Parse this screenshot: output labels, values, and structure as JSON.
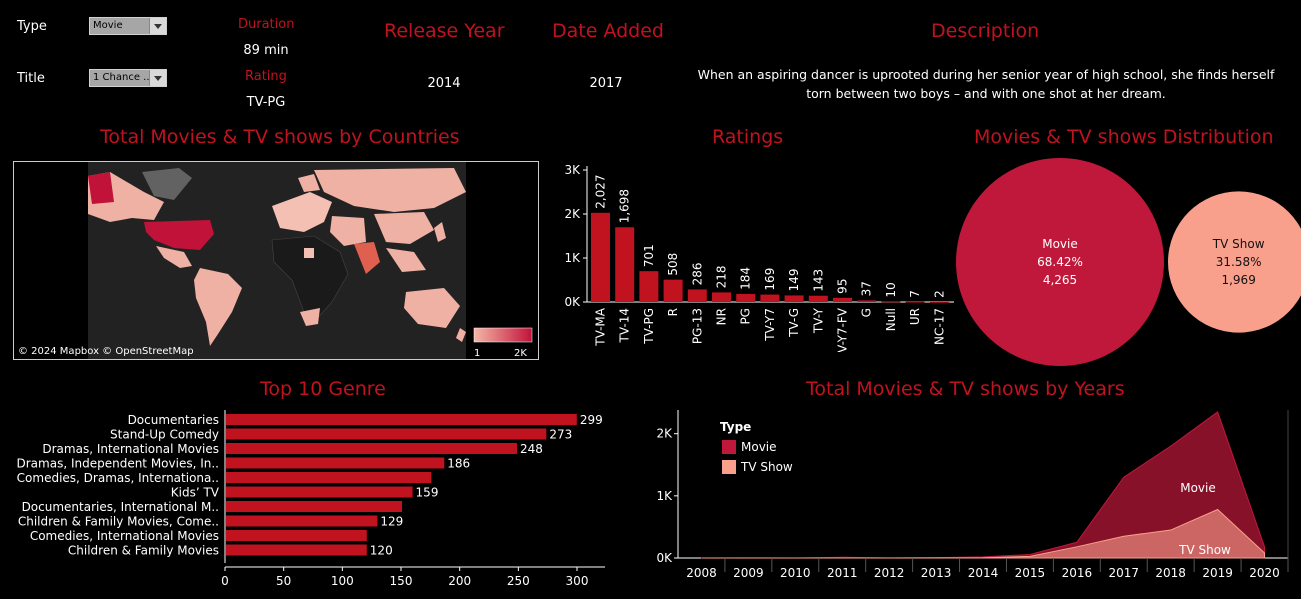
{
  "filters": {
    "type_label": "Type",
    "type_value": "Movie",
    "title_label": "Title",
    "title_value": "1 Chance ..."
  },
  "details": {
    "duration_label": "Duration",
    "duration_value": "89 min",
    "rating_label": "Rating",
    "rating_value": "TV-PG",
    "release_label": "Release Year",
    "release_value": "2014",
    "added_label": "Date Added",
    "added_value": "2017",
    "description_label": "Description",
    "description_value": "When an aspiring dancer is uprooted during her senior year of high school, she finds herself torn between two boys – and with one shot at her dream."
  },
  "map": {
    "title": "Total Movies & TV shows by Countries",
    "attribution": "© 2024 Mapbox © OpenStreetMap",
    "legend_min": "1",
    "legend_max": "2K",
    "color_low": "#f4b7a6",
    "color_high": "#c1123a"
  },
  "colors": {
    "accent": "#c1121f",
    "movie": "#c0183b",
    "tvshow": "#f8a08c"
  },
  "chart_data": [
    {
      "type": "bar",
      "title": "Ratings",
      "categories": [
        "TV-MA",
        "TV-14",
        "TV-PG",
        "R",
        "PG-13",
        "NR",
        "PG",
        "TV-Y7",
        "TV-G",
        "TV-Y",
        "TV-Y7-FV",
        "G",
        "Null",
        "UR",
        "NC-17"
      ],
      "values": [
        2027,
        1698,
        701,
        508,
        286,
        218,
        184,
        169,
        149,
        143,
        95,
        37,
        10,
        7,
        2
      ],
      "data_labels": [
        "2,027",
        "1,698",
        "701",
        "508",
        "286",
        "218",
        "184",
        "169",
        "149",
        "143",
        "95",
        "37",
        "10",
        "7",
        "2"
      ],
      "yticks": [
        "0K",
        "1K",
        "2K",
        "3K"
      ],
      "ylim": [
        0,
        3000
      ]
    },
    {
      "type": "pie",
      "title": "Movies & TV shows Distribution",
      "slices": [
        {
          "name": "Movie",
          "percent": "68.42%",
          "count": "4,265",
          "value": 4265
        },
        {
          "name": "TV Show",
          "percent": "31.58%",
          "count": "1,969",
          "value": 1969
        }
      ]
    },
    {
      "type": "bar",
      "title": "Top 10 Genre",
      "categories": [
        "Documentaries",
        "Stand-Up Comedy",
        "Dramas, International Movies",
        "Dramas, Independent Movies, In..",
        "Comedies, Dramas, Internationa..",
        "Kids’ TV",
        "Documentaries, International M..",
        "Children & Family Movies, Come..",
        "Comedies, International Movies",
        "Children & Family Movies"
      ],
      "values": [
        299,
        273,
        248,
        186,
        175,
        159,
        150,
        129,
        120,
        120
      ],
      "data_labels": [
        "299",
        "273",
        "248",
        "186",
        "",
        "159",
        "",
        "129",
        "",
        "120"
      ],
      "xticks": [
        "0",
        "50",
        "100",
        "150",
        "200",
        "250",
        "300"
      ],
      "xlim": [
        0,
        330
      ]
    },
    {
      "type": "area",
      "title": "Total Movies & TV shows by Years",
      "legend_title": "Type",
      "x": [
        "2008",
        "2009",
        "2010",
        "2011",
        "2012",
        "2013",
        "2014",
        "2015",
        "2016",
        "2017",
        "2018",
        "2019",
        "2020"
      ],
      "yticks": [
        "0K",
        "1K",
        "2K"
      ],
      "ylim": [
        0,
        2500
      ],
      "series": [
        {
          "name": "Movie",
          "values": [
            1,
            2,
            1,
            13,
            3,
            6,
            19,
            56,
            253,
            1300,
            1800,
            2350,
            180
          ]
        },
        {
          "name": "TV Show",
          "values": [
            0,
            0,
            0,
            0,
            0,
            2,
            5,
            26,
            180,
            350,
            450,
            780,
            80
          ]
        }
      ]
    }
  ]
}
